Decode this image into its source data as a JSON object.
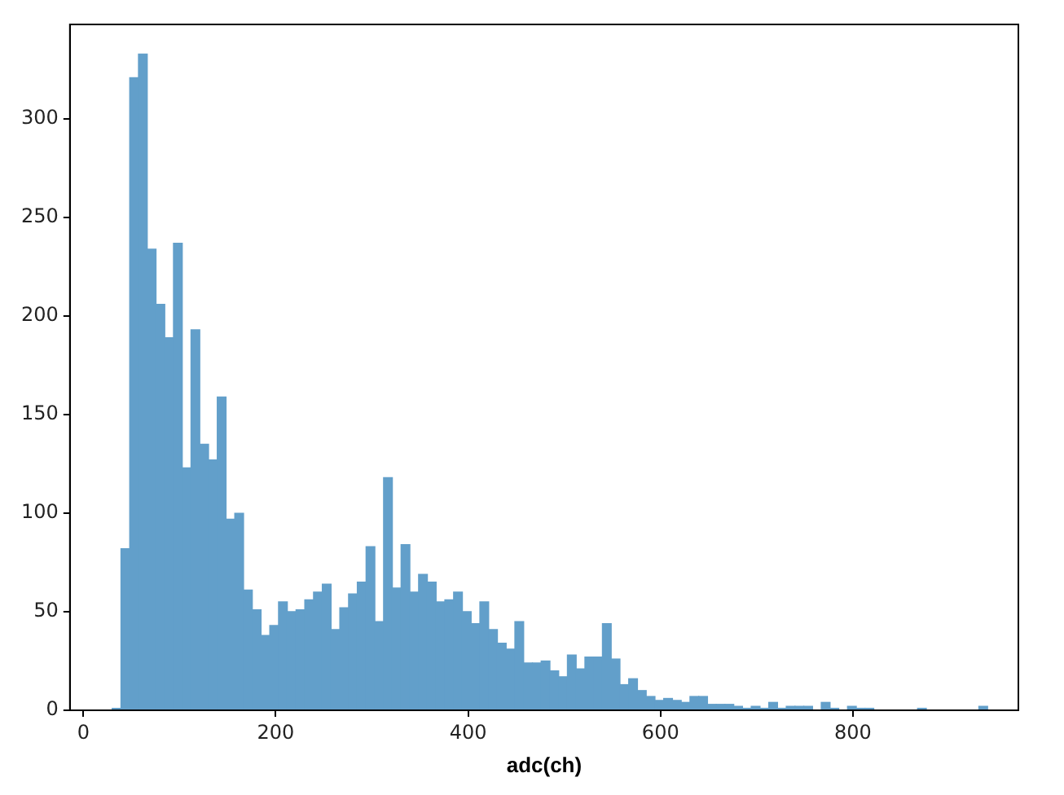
{
  "chart_data": {
    "type": "histogram",
    "xlabel": "adc(ch)",
    "bins": [
      30,
      39.1,
      48.2,
      57.3,
      66.4,
      75.5,
      84.6,
      93.7,
      102.8,
      111.9,
      121,
      130.1,
      139.2,
      148.3,
      157.4,
      166.5,
      175.6,
      184.7,
      193.8,
      202.9,
      212,
      221.1,
      230.2,
      239.3,
      248.4,
      257.5,
      266.6,
      275.7,
      284.8,
      293.9,
      303,
      312.1,
      321.2,
      330.3,
      339.4,
      348.5,
      357.6,
      366.7,
      375.8,
      384.9,
      394,
      403.1,
      412.2,
      421.3,
      430.4,
      439.5,
      448.6,
      457.7,
      466.8,
      475.9,
      485,
      494.1,
      503.2,
      512.3,
      521.4,
      530.5,
      539.6,
      548.7,
      557.8,
      566.9,
      576,
      585.1,
      594.2,
      603.3,
      612.4,
      621.5,
      630.6,
      639.7,
      648.8,
      657.9,
      667,
      676.1,
      685.2,
      694.3,
      703.4,
      712.5,
      721.6,
      730.7,
      739.8,
      748.9,
      758,
      767.1,
      776.2,
      785.3,
      794.4,
      803.5,
      812.6,
      821.7,
      830.8,
      839.9,
      849,
      858.1,
      867.2,
      876.3,
      885.4,
      894.5,
      903.6,
      912.7,
      921.8,
      930.9,
      940
    ],
    "values": [
      1,
      82,
      321,
      333,
      234,
      206,
      189,
      237,
      123,
      193,
      135,
      127,
      159,
      97,
      100,
      61,
      51,
      38,
      43,
      55,
      50,
      51,
      56,
      60,
      64,
      41,
      52,
      59,
      65,
      83,
      45,
      118,
      62,
      84,
      60,
      69,
      65,
      55,
      56,
      60,
      50,
      44,
      55,
      41,
      34,
      31,
      45,
      24,
      24,
      25,
      20,
      17,
      28,
      21,
      27,
      27,
      44,
      26,
      13,
      16,
      10,
      7,
      5,
      6,
      5,
      4,
      7,
      7,
      3,
      3,
      3,
      2,
      1,
      2,
      1,
      4,
      1,
      2,
      2,
      2,
      0,
      4,
      1,
      0,
      2,
      1,
      1,
      0,
      0,
      0,
      0,
      0,
      1,
      0,
      0,
      0,
      0,
      0,
      0,
      2
    ],
    "color": "#629fca",
    "xlim": [
      -14,
      972
    ],
    "ylim": [
      0,
      348
    ],
    "xticks": [
      0,
      200,
      400,
      600,
      800
    ],
    "yticks": [
      0,
      50,
      100,
      150,
      200,
      250,
      300
    ]
  }
}
